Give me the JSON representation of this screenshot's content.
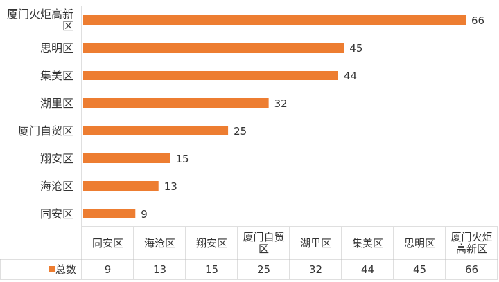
{
  "chart_data": {
    "type": "bar",
    "orientation": "horizontal",
    "categories": [
      "同安区",
      "海沧区",
      "翔安区",
      "厦门自贸区",
      "湖里区",
      "集美区",
      "思明区",
      "厦门火炬高新区"
    ],
    "series": [
      {
        "name": "总数",
        "color": "#ED7D31",
        "values": [
          9,
          13,
          15,
          25,
          32,
          44,
          45,
          66
        ]
      }
    ],
    "data_table": true
  }
}
